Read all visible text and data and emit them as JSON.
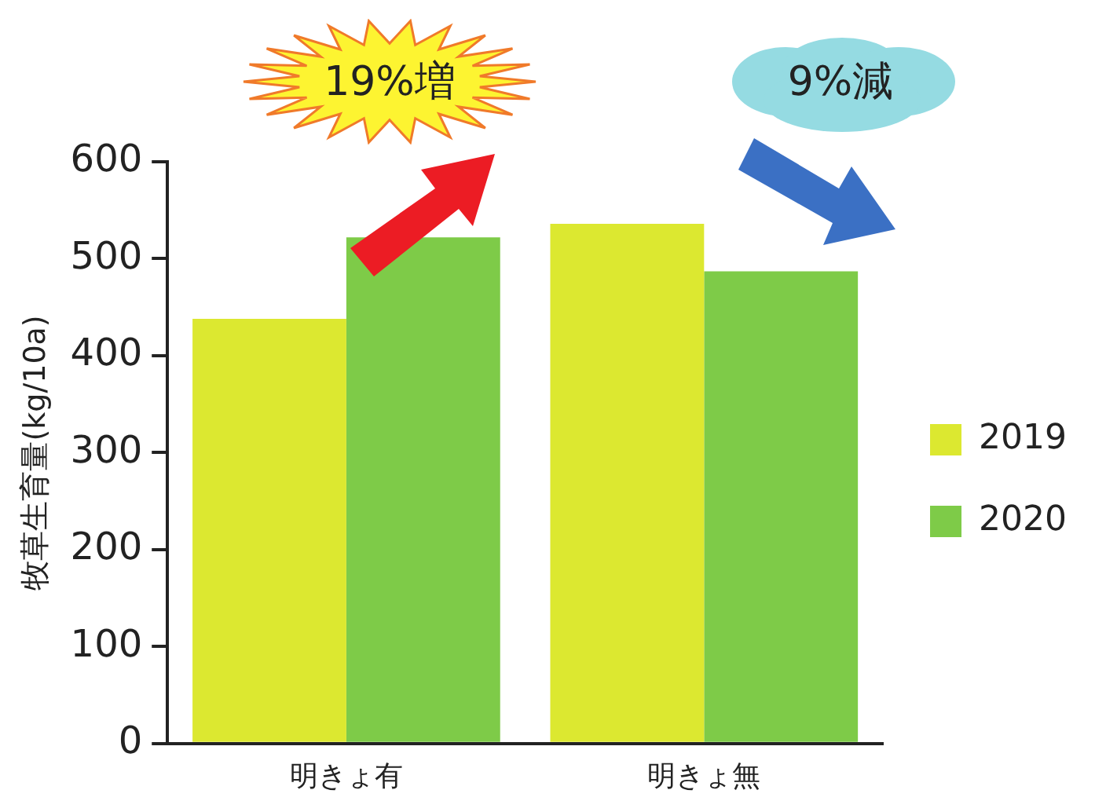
{
  "chart_data": {
    "type": "bar",
    "ylabel": "牧草生育量(kg/10a)",
    "categories": [
      "明きょ有",
      "明きょ無"
    ],
    "series": [
      {
        "name": "2019",
        "color": "#dce830",
        "values": [
          438,
          536
        ]
      },
      {
        "name": "2020",
        "color": "#7ecb48",
        "values": [
          522,
          487
        ]
      }
    ],
    "ylim": [
      0,
      600
    ],
    "yticks": [
      0,
      100,
      200,
      300,
      400,
      500,
      600
    ],
    "legend": "right",
    "annotations": [
      "19%増",
      "9%減"
    ]
  }
}
